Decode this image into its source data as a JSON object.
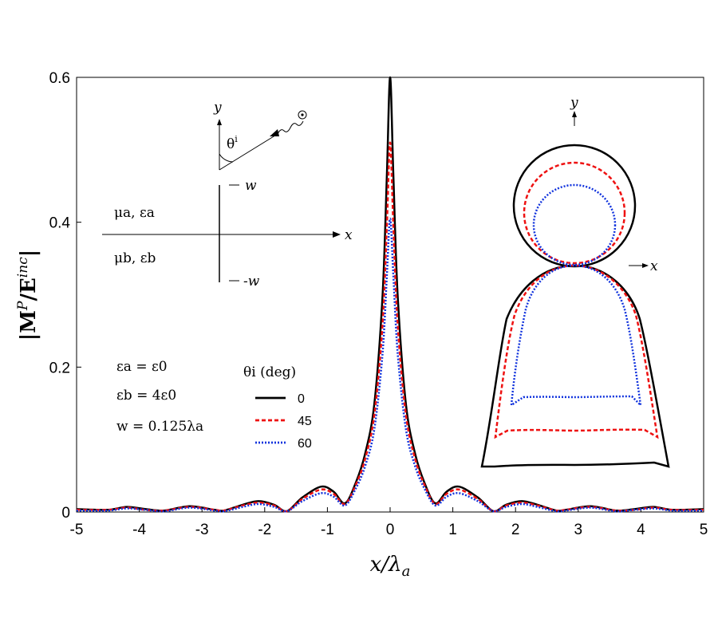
{
  "chart_data": {
    "type": "line",
    "xlabel": "x/λa",
    "ylabel": "|MP/Einc|",
    "xlim": [
      -5,
      5
    ],
    "ylim": [
      0,
      0.6
    ],
    "xticks": [
      "-5",
      "-4",
      "-3",
      "-2",
      "-1",
      "0",
      "1",
      "2",
      "3",
      "4",
      "5"
    ],
    "yticks": [
      "0",
      "0.2",
      "0.4",
      "0.6"
    ],
    "legend_title": "θi (deg)",
    "series": [
      {
        "name": "0",
        "color": "#000000",
        "style": "solid",
        "points": [
          [
            -5,
            0.004
          ],
          [
            -4.5,
            0.003
          ],
          [
            -4.2,
            0.007
          ],
          [
            -3.9,
            0.004
          ],
          [
            -3.6,
            0.002
          ],
          [
            -3.2,
            0.008
          ],
          [
            -2.8,
            0.003
          ],
          [
            -2.65,
            0.002
          ],
          [
            -2.35,
            0.01
          ],
          [
            -2.1,
            0.015
          ],
          [
            -1.85,
            0.01
          ],
          [
            -1.65,
            0.001
          ],
          [
            -1.4,
            0.02
          ],
          [
            -1.1,
            0.035
          ],
          [
            -0.9,
            0.028
          ],
          [
            -0.72,
            0.012
          ],
          [
            -0.55,
            0.04
          ],
          [
            -0.4,
            0.08
          ],
          [
            -0.25,
            0.15
          ],
          [
            -0.12,
            0.3
          ],
          [
            -0.05,
            0.47
          ],
          [
            0,
            0.6
          ],
          [
            0.05,
            0.47
          ],
          [
            0.12,
            0.3
          ],
          [
            0.25,
            0.15
          ],
          [
            0.4,
            0.08
          ],
          [
            0.55,
            0.04
          ],
          [
            0.72,
            0.012
          ],
          [
            0.9,
            0.028
          ],
          [
            1.1,
            0.035
          ],
          [
            1.4,
            0.02
          ],
          [
            1.65,
            0.001
          ],
          [
            1.85,
            0.01
          ],
          [
            2.1,
            0.015
          ],
          [
            2.35,
            0.01
          ],
          [
            2.65,
            0.002
          ],
          [
            2.8,
            0.003
          ],
          [
            3.2,
            0.008
          ],
          [
            3.6,
            0.002
          ],
          [
            3.9,
            0.004
          ],
          [
            4.2,
            0.007
          ],
          [
            4.5,
            0.003
          ],
          [
            5,
            0.004
          ]
        ]
      },
      {
        "name": "45",
        "color": "#ee1111",
        "style": "dashed",
        "points": [
          [
            -5,
            0.003
          ],
          [
            -4.5,
            0.003
          ],
          [
            -4.2,
            0.006
          ],
          [
            -3.9,
            0.003
          ],
          [
            -3.6,
            0.002
          ],
          [
            -3.2,
            0.007
          ],
          [
            -2.8,
            0.003
          ],
          [
            -2.65,
            0.002
          ],
          [
            -2.35,
            0.009
          ],
          [
            -2.1,
            0.013
          ],
          [
            -1.85,
            0.009
          ],
          [
            -1.65,
            0.001
          ],
          [
            -1.4,
            0.018
          ],
          [
            -1.1,
            0.031
          ],
          [
            -0.9,
            0.025
          ],
          [
            -0.72,
            0.011
          ],
          [
            -0.55,
            0.037
          ],
          [
            -0.4,
            0.073
          ],
          [
            -0.25,
            0.135
          ],
          [
            -0.12,
            0.26
          ],
          [
            -0.05,
            0.4
          ],
          [
            0,
            0.51
          ],
          [
            0.05,
            0.4
          ],
          [
            0.12,
            0.26
          ],
          [
            0.25,
            0.135
          ],
          [
            0.4,
            0.073
          ],
          [
            0.55,
            0.037
          ],
          [
            0.72,
            0.011
          ],
          [
            0.9,
            0.025
          ],
          [
            1.1,
            0.031
          ],
          [
            1.4,
            0.018
          ],
          [
            1.65,
            0.001
          ],
          [
            1.85,
            0.009
          ],
          [
            2.1,
            0.013
          ],
          [
            2.35,
            0.009
          ],
          [
            2.65,
            0.002
          ],
          [
            2.8,
            0.003
          ],
          [
            3.2,
            0.007
          ],
          [
            3.6,
            0.002
          ],
          [
            3.9,
            0.003
          ],
          [
            4.2,
            0.006
          ],
          [
            4.5,
            0.003
          ],
          [
            5,
            0.003
          ]
        ]
      },
      {
        "name": "60",
        "color": "#1133dd",
        "style": "dotted",
        "points": [
          [
            -5,
            0.002
          ],
          [
            -4.5,
            0.002
          ],
          [
            -4.2,
            0.005
          ],
          [
            -3.9,
            0.003
          ],
          [
            -3.6,
            0.001
          ],
          [
            -3.2,
            0.006
          ],
          [
            -2.8,
            0.002
          ],
          [
            -2.65,
            0.001
          ],
          [
            -2.35,
            0.007
          ],
          [
            -2.1,
            0.011
          ],
          [
            -1.85,
            0.007
          ],
          [
            -1.65,
            0.001
          ],
          [
            -1.4,
            0.015
          ],
          [
            -1.1,
            0.026
          ],
          [
            -0.9,
            0.021
          ],
          [
            -0.72,
            0.009
          ],
          [
            -0.55,
            0.032
          ],
          [
            -0.4,
            0.063
          ],
          [
            -0.25,
            0.115
          ],
          [
            -0.12,
            0.22
          ],
          [
            -0.05,
            0.33
          ],
          [
            0,
            0.405
          ],
          [
            0.05,
            0.33
          ],
          [
            0.12,
            0.22
          ],
          [
            0.25,
            0.115
          ],
          [
            0.4,
            0.063
          ],
          [
            0.55,
            0.032
          ],
          [
            0.72,
            0.009
          ],
          [
            0.9,
            0.021
          ],
          [
            1.1,
            0.026
          ],
          [
            1.4,
            0.015
          ],
          [
            1.65,
            0.001
          ],
          [
            1.85,
            0.007
          ],
          [
            2.1,
            0.011
          ],
          [
            2.35,
            0.007
          ],
          [
            2.65,
            0.001
          ],
          [
            2.8,
            0.002
          ],
          [
            3.2,
            0.006
          ],
          [
            3.6,
            0.001
          ],
          [
            3.9,
            0.003
          ],
          [
            4.2,
            0.005
          ],
          [
            4.5,
            0.002
          ],
          [
            5,
            0.002
          ]
        ]
      }
    ],
    "params": [
      "εa = ε0",
      "εb = 4ε0",
      "w = 0.125λa"
    ],
    "geometry_labels": {
      "upper_medium": "μa, εa",
      "lower_medium": "μb, εb",
      "x_axis": "x",
      "y_axis": "y",
      "plus_w": "w",
      "minus_w": "-w",
      "angle": "θi"
    },
    "polar_inset_axes": {
      "x": "x",
      "y": "y"
    }
  }
}
